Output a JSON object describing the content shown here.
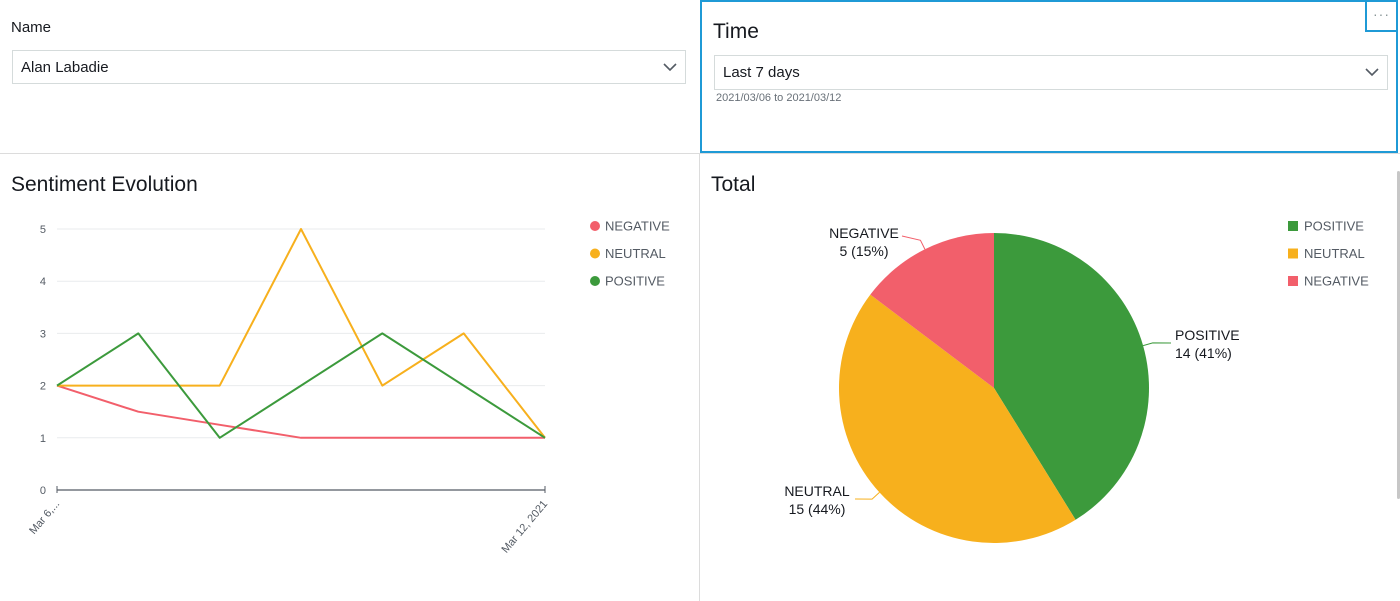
{
  "filters": {
    "name": {
      "label": "Name",
      "value": "Alan Labadie"
    },
    "time": {
      "title": "Time",
      "value": "Last 7 days",
      "range_text": "2021/03/06 to 2021/03/12",
      "menu_label": "···"
    }
  },
  "colors": {
    "negative": "#f25f6b",
    "neutral": "#f7b01d",
    "positive": "#3c9a3c",
    "accent": "#1f9ad6"
  },
  "sentiment_panel": {
    "title": "Sentiment Evolution"
  },
  "total_panel": {
    "title": "Total"
  },
  "chart_data": [
    {
      "type": "line",
      "title": "Sentiment Evolution",
      "x_ticks_shown": [
        "Mar 6,...",
        "Mar 12, 2021"
      ],
      "x_points": 7,
      "ylim": [
        0,
        5
      ],
      "yticks": [
        "0",
        "1",
        "2",
        "3",
        "4",
        "5"
      ],
      "grid": true,
      "legend_position": "right",
      "series": [
        {
          "name": "NEGATIVE",
          "color": "#f25f6b",
          "values": [
            2,
            1.5,
            1.25,
            1,
            1,
            1,
            1
          ]
        },
        {
          "name": "NEUTRAL",
          "color": "#f7b01d",
          "values": [
            2,
            2,
            2,
            5,
            2,
            3,
            1
          ]
        },
        {
          "name": "POSITIVE",
          "color": "#3c9a3c",
          "values": [
            2,
            3,
            1,
            2,
            3,
            2,
            1
          ]
        }
      ]
    },
    {
      "type": "pie",
      "title": "Total",
      "legend_position": "right",
      "legend": [
        "POSITIVE",
        "NEUTRAL",
        "NEGATIVE"
      ],
      "slices": [
        {
          "name": "POSITIVE",
          "value": 14,
          "percent": "41%",
          "label": "POSITIVE",
          "value_label": "14 (41%)",
          "color": "#3c9a3c"
        },
        {
          "name": "NEUTRAL",
          "value": 15,
          "percent": "44%",
          "label": "NEUTRAL",
          "value_label": "15 (44%)",
          "color": "#f7b01d"
        },
        {
          "name": "NEGATIVE",
          "value": 5,
          "percent": "15%",
          "label": "NEGATIVE",
          "value_label": "5 (15%)",
          "color": "#f25f6b"
        }
      ]
    }
  ]
}
